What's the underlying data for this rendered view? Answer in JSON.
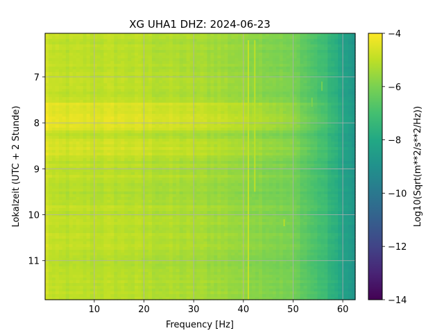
{
  "chart_data": {
    "type": "heatmap",
    "title": "XG UHA1  DHZ: 2024-06-23",
    "xlabel": "Frequency [Hz]",
    "ylabel": "Lokalzeit (UTC + 2 Stunde)",
    "xlim": [
      0.1,
      62.5
    ],
    "ylim": [
      11.85,
      6.05
    ],
    "x_ticks": [
      10,
      20,
      30,
      40,
      50,
      60
    ],
    "y_ticks": [
      7,
      8,
      9,
      10,
      11
    ],
    "grid": true,
    "colorscale": "viridis",
    "colorbar": {
      "label": "Log10(Sqrt(m**2/s**2/Hz))",
      "range": [
        -14,
        -4
      ],
      "ticks": [
        -14,
        -12,
        -10,
        -8,
        -6,
        -4
      ]
    },
    "z_profile_by_frequency": {
      "frequency": [
        0.5,
        1,
        2,
        5,
        10,
        15,
        20,
        25,
        30,
        35,
        40,
        45,
        50,
        52,
        54,
        56,
        58,
        60,
        62,
        62.5
      ],
      "value": [
        -4.7,
        -4.8,
        -5.0,
        -5.0,
        -5.0,
        -5.0,
        -5.1,
        -5.2,
        -5.3,
        -5.4,
        -5.6,
        -5.8,
        -6.1,
        -6.4,
        -6.8,
        -7.1,
        -7.6,
        -8.2,
        -8.7,
        -8.8
      ]
    },
    "time_bands": [
      {
        "start": 7.55,
        "end": 8.15,
        "offset": 0.55
      },
      {
        "start": 8.35,
        "end": 8.7,
        "offset": 0.35
      },
      {
        "start": 9.3,
        "end": 9.8,
        "offset": -0.2
      },
      {
        "start": 10.8,
        "end": 11.1,
        "offset": -0.15
      }
    ],
    "spectral_lines": [
      {
        "frequency": 41.0,
        "start": 6.2,
        "end": 11.85,
        "offset": 0.8
      },
      {
        "frequency": 42.3,
        "start": 6.2,
        "end": 9.5,
        "offset": 0.7
      },
      {
        "frequency": 48.2,
        "start": 10.1,
        "end": 10.25,
        "offset": 0.9
      },
      {
        "frequency": 55.8,
        "start": 7.1,
        "end": 7.3,
        "offset": 0.9
      },
      {
        "frequency": 53.8,
        "start": 7.45,
        "end": 7.65,
        "offset": 0.8
      }
    ]
  }
}
